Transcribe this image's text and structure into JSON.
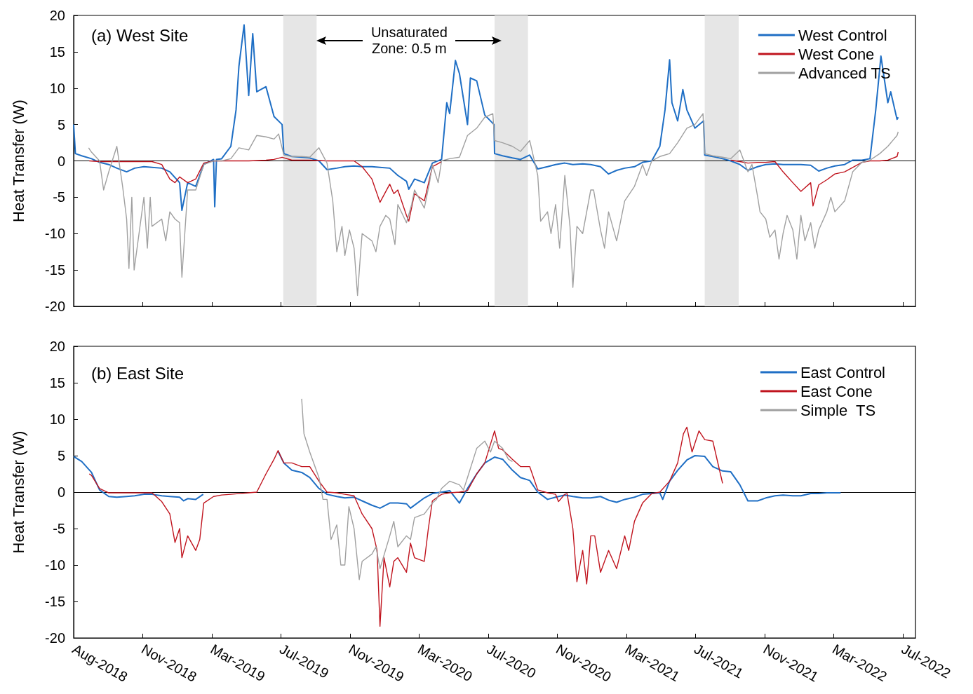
{
  "chart_data": [
    {
      "type": "line",
      "title": "(a) West Site",
      "ylabel": "Heat Transfer (W)",
      "annotations": [
        {
          "text": "Unsaturated Zone: 0.5 m",
          "x": "2019-09-27",
          "y": 16.5
        }
      ],
      "xlim": [
        "2018-08-01",
        "2022-08-02"
      ],
      "xticks": [
        {
          "value": "2018-08-01",
          "label": null
        },
        {
          "value": "2018-11-29",
          "label": null
        },
        {
          "value": "2019-03-29",
          "label": null
        },
        {
          "value": "2019-07-27",
          "label": null
        },
        {
          "value": "2019-11-24",
          "label": null
        },
        {
          "value": "2020-03-23",
          "label": null
        },
        {
          "value": "2020-07-21",
          "label": null
        },
        {
          "value": "2020-11-18",
          "label": null
        },
        {
          "value": "2021-03-18",
          "label": null
        },
        {
          "value": "2021-07-16",
          "label": null
        },
        {
          "value": "2021-11-13",
          "label": null
        },
        {
          "value": "2022-03-13",
          "label": null
        },
        {
          "value": "2022-07-11",
          "label": null
        }
      ],
      "ylim": [
        -20,
        20
      ],
      "yticks": [
        -20,
        -15,
        -10,
        -5,
        0,
        5,
        10,
        15,
        20
      ],
      "tick_labels": "y",
      "legend": "top right",
      "marker": "none",
      "ref_lines": [
        {
          "axis": "y",
          "value": 0,
          "color": "#000000"
        }
      ],
      "bands": [
        {
          "axis": "x",
          "from": "2019-07-31",
          "to": "2019-09-27",
          "color": "#e6e6e6"
        },
        {
          "axis": "x",
          "from": "2020-08-01",
          "to": "2020-09-28",
          "color": "#e6e6e6"
        },
        {
          "axis": "x",
          "from": "2021-08-01",
          "to": "2021-09-29",
          "color": "#e6e6e6"
        }
      ],
      "series": [
        {
          "name": "West Control",
          "color": "#1f6fc5",
          "x": [
            "2018-08-01",
            "2018-08-04",
            "2018-08-15",
            "2018-09-01",
            "2018-09-15",
            "2018-10-01",
            "2018-10-15",
            "2018-11-01",
            "2018-11-15",
            "2018-12-01",
            "2018-12-15",
            "2019-01-01",
            "2019-01-15",
            "2019-02-01",
            "2019-02-05",
            "2019-02-15",
            "2019-03-01",
            "2019-03-15",
            "2019-04-01",
            "2019-04-03",
            "2019-04-06",
            "2019-04-15",
            "2019-05-01",
            "2019-05-10",
            "2019-05-15",
            "2019-05-24",
            "2019-06-01",
            "2019-06-08",
            "2019-06-15",
            "2019-07-01",
            "2019-07-15",
            "2019-07-29",
            "2019-08-01",
            "2019-08-15",
            "2019-09-01",
            "2019-09-15",
            "2019-10-01",
            "2019-10-15",
            "2019-11-01",
            "2019-11-15",
            "2019-12-01",
            "2019-12-15",
            "2020-01-01",
            "2020-01-15",
            "2020-02-01",
            "2020-02-15",
            "2020-03-01",
            "2020-03-05",
            "2020-03-15",
            "2020-04-01",
            "2020-04-15",
            "2020-05-01",
            "2020-05-10",
            "2020-05-15",
            "2020-05-25",
            "2020-06-01",
            "2020-06-15",
            "2020-06-20",
            "2020-07-01",
            "2020-07-15",
            "2020-07-31",
            "2020-08-01",
            "2020-08-15",
            "2020-09-01",
            "2020-09-15",
            "2020-10-01",
            "2020-10-15",
            "2020-11-01",
            "2020-11-15",
            "2020-12-01",
            "2020-12-15",
            "2021-01-01",
            "2021-01-15",
            "2021-02-01",
            "2021-02-15",
            "2021-03-01",
            "2021-03-15",
            "2021-04-01",
            "2021-04-15",
            "2021-05-01",
            "2021-05-15",
            "2021-05-24",
            "2021-06-01",
            "2021-06-05",
            "2021-06-15",
            "2021-06-24",
            "2021-07-01",
            "2021-07-15",
            "2021-07-30",
            "2021-08-01",
            "2021-08-15",
            "2021-09-01",
            "2021-09-15",
            "2021-10-01",
            "2021-10-15",
            "2021-11-01",
            "2021-11-15",
            "2021-12-01",
            "2021-12-15",
            "2022-01-01",
            "2022-01-15",
            "2022-02-01",
            "2022-02-15",
            "2022-03-01",
            "2022-03-15",
            "2022-04-01",
            "2022-04-15",
            "2022-05-01",
            "2022-05-15",
            "2022-05-25",
            "2022-06-03",
            "2022-06-15",
            "2022-06-20",
            "2022-07-01",
            "2022-07-03"
          ],
          "values": [
            5.0,
            1.0,
            0.7,
            0.3,
            -0.2,
            -0.5,
            -1.0,
            -1.5,
            -1.0,
            -0.8,
            -0.9,
            -1.0,
            -1.5,
            -3.0,
            -6.8,
            -3.0,
            -3.5,
            -0.5,
            0.2,
            -6.3,
            0.2,
            0.3,
            2.0,
            7.0,
            13.0,
            18.7,
            9.0,
            17.5,
            9.5,
            10.2,
            6.1,
            5.0,
            1.0,
            0.6,
            0.5,
            0.4,
            0.0,
            -1.2,
            -1.0,
            -0.8,
            -0.7,
            -0.8,
            -0.8,
            -0.9,
            -1.0,
            -2.0,
            -2.8,
            -3.9,
            -2.5,
            -3.0,
            -0.3,
            0.2,
            8.0,
            6.5,
            13.8,
            12.0,
            5.0,
            11.4,
            11.0,
            6.3,
            5.0,
            1.0,
            0.7,
            0.4,
            0.2,
            0.8,
            -1.1,
            -0.8,
            -0.5,
            -0.3,
            -0.5,
            -0.4,
            -0.5,
            -0.8,
            -1.8,
            -1.3,
            -1.0,
            -0.8,
            -0.2,
            0.0,
            2.0,
            7.0,
            13.9,
            8.0,
            5.5,
            9.8,
            7.0,
            4.5,
            5.5,
            0.8,
            0.6,
            0.3,
            0.0,
            -0.5,
            -1.3,
            -0.8,
            -0.5,
            -0.4,
            -0.5,
            -0.5,
            -0.5,
            -0.6,
            -1.4,
            -1.0,
            -0.7,
            -0.5,
            0.1,
            0.1,
            0.3,
            7.0,
            14.4,
            8.0,
            9.5,
            5.7,
            6.0
          ]
        },
        {
          "name": "West Cone",
          "color": "#c0141e",
          "x": [
            "2018-08-28",
            "2018-09-15",
            "2018-10-15",
            "2018-11-15",
            "2018-12-15",
            "2019-01-01",
            "2019-01-15",
            "2019-01-24",
            "2019-02-01",
            "2019-02-15",
            "2019-03-01",
            "2019-03-15",
            "2019-04-01",
            "2019-05-01",
            "2019-06-01",
            "2019-07-01",
            "2019-07-15",
            "2019-07-29",
            "2019-08-15",
            "2019-09-15",
            "2019-10-15",
            "2019-11-15",
            "2019-12-01",
            "2019-12-15",
            "2020-01-01",
            "2020-01-15",
            "2020-02-01",
            "2020-02-08",
            "2020-02-15",
            "2020-03-01",
            "2020-03-05",
            "2020-03-15",
            "2020-04-01",
            "2020-04-15",
            "2020-05-01",
            "2021-01-01",
            "2021-09-15",
            "2021-10-01",
            "2021-10-15",
            "2021-11-01",
            "2021-11-15",
            "2021-12-01",
            "2021-12-15",
            "2022-01-01",
            "2022-01-15",
            "2022-02-01",
            "2022-02-05",
            "2022-02-15",
            "2022-03-01",
            "2022-03-15",
            "2022-04-01",
            "2022-04-15",
            "2022-05-01",
            "2022-05-15",
            "2022-06-01",
            "2022-06-15",
            "2022-07-01",
            "2022-07-03"
          ],
          "values": [
            0.0,
            -0.1,
            -0.1,
            -0.1,
            -0.1,
            -0.5,
            -2.5,
            -3.0,
            -2.2,
            -3.0,
            -2.5,
            -0.3,
            0.0,
            0.0,
            0.0,
            0.1,
            0.2,
            0.5,
            0.1,
            0.1,
            0.0,
            0.0,
            0.0,
            -0.8,
            -2.5,
            -5.7,
            -3.2,
            -4.5,
            -4.0,
            -7.5,
            -8.3,
            -4.5,
            -5.5,
            -0.8,
            -0.1,
            null,
            0.1,
            -0.1,
            -0.3,
            -0.2,
            -0.2,
            -0.1,
            -1.5,
            -3.0,
            -4.2,
            -3.0,
            -6.2,
            -3.3,
            -2.6,
            -1.8,
            -1.5,
            -0.9,
            -0.2,
            0.0,
            0.0,
            0.1,
            0.6,
            1.2
          ]
        },
        {
          "name": "Advanced TS",
          "color": "#a0a0a0",
          "x": [
            "2018-08-27",
            "2018-09-01",
            "2018-09-15",
            "2018-09-22",
            "2018-10-01",
            "2018-10-15",
            "2018-10-25",
            "2018-11-01",
            "2018-11-05",
            "2018-11-10",
            "2018-11-14",
            "2018-12-01",
            "2018-12-07",
            "2018-12-12",
            "2018-12-15",
            "2019-01-01",
            "2019-01-08",
            "2019-01-15",
            "2019-01-24",
            "2019-02-01",
            "2019-02-05",
            "2019-02-15",
            "2019-03-01",
            "2019-03-15",
            "2019-04-01",
            "2019-04-15",
            "2019-05-01",
            "2019-05-15",
            "2019-06-01",
            "2019-06-15",
            "2019-07-01",
            "2019-07-15",
            "2019-07-23",
            "2019-08-01",
            "2019-08-15",
            "2019-09-01",
            "2019-09-15",
            "2019-10-01",
            "2019-10-15",
            "2019-10-25",
            "2019-11-01",
            "2019-11-10",
            "2019-11-15",
            "2019-11-23",
            "2019-12-01",
            "2019-12-07",
            "2019-12-12",
            "2019-12-15",
            "2020-01-01",
            "2020-01-08",
            "2020-01-15",
            "2020-01-25",
            "2020-02-01",
            "2020-02-10",
            "2020-02-15",
            "2020-03-01",
            "2020-03-10",
            "2020-03-15",
            "2020-04-01",
            "2020-04-10",
            "2020-04-15",
            "2020-04-25",
            "2020-05-01",
            "2020-05-15",
            "2020-06-01",
            "2020-06-15",
            "2020-07-01",
            "2020-07-15",
            "2020-07-29",
            "2020-08-01",
            "2020-08-15",
            "2020-09-01",
            "2020-09-15",
            "2020-10-01",
            "2020-10-15",
            "2020-10-20",
            "2020-11-01",
            "2020-11-07",
            "2020-11-15",
            "2020-11-22",
            "2020-12-01",
            "2020-12-10",
            "2020-12-15",
            "2020-12-22",
            "2021-01-01",
            "2021-01-15",
            "2021-01-20",
            "2021-02-01",
            "2021-02-08",
            "2021-02-15",
            "2021-03-01",
            "2021-03-15",
            "2021-04-01",
            "2021-04-15",
            "2021-04-22",
            "2021-05-01",
            "2021-05-15",
            "2021-06-01",
            "2021-06-15",
            "2021-07-01",
            "2021-07-15",
            "2021-07-29",
            "2021-08-01",
            "2021-08-15",
            "2021-09-01",
            "2021-09-15",
            "2021-10-01",
            "2021-10-15",
            "2021-10-22",
            "2021-11-01",
            "2021-11-05",
            "2021-11-15",
            "2021-11-22",
            "2021-12-01",
            "2021-12-08",
            "2021-12-15",
            "2021-12-22",
            "2022-01-01",
            "2022-01-08",
            "2022-01-15",
            "2022-01-22",
            "2022-02-01",
            "2022-02-08",
            "2022-02-15",
            "2022-03-01",
            "2022-03-08",
            "2022-03-15",
            "2022-04-01",
            "2022-04-15",
            "2022-05-01",
            "2022-05-15",
            "2022-06-01",
            "2022-06-15",
            "2022-07-01",
            "2022-07-03"
          ],
          "values": [
            1.8,
            1.2,
            0.0,
            -4.0,
            -1.5,
            2.0,
            -3.5,
            -8.0,
            -14.8,
            -5.0,
            -15.0,
            -5.0,
            -12.0,
            -5.0,
            -9.0,
            -8.0,
            -11.0,
            -7.0,
            -8.0,
            -8.5,
            -16.0,
            -4.0,
            -4.0,
            -0.5,
            0.0,
            0.0,
            0.3,
            1.8,
            1.5,
            3.5,
            3.3,
            3.0,
            3.7,
            0.8,
            0.6,
            0.6,
            0.5,
            1.8,
            -0.3,
            -5.5,
            -12.5,
            -9.0,
            -13.0,
            -9.5,
            -12.0,
            -18.5,
            -13.0,
            -10.0,
            -11.0,
            -12.5,
            -9.0,
            -7.5,
            -8.0,
            -11.5,
            -6.0,
            -8.5,
            -6.0,
            -4.0,
            -6.5,
            -3.0,
            -0.5,
            -3.0,
            0.0,
            0.3,
            0.5,
            3.5,
            4.5,
            6.0,
            6.5,
            2.8,
            2.5,
            2.0,
            1.3,
            2.8,
            -2.0,
            -8.3,
            -7.0,
            -10.0,
            -6.0,
            -12.0,
            -2.0,
            -9.0,
            -17.4,
            -9.0,
            -10.0,
            -4.0,
            -4.0,
            -9.5,
            -12.0,
            -7.0,
            -11.0,
            -5.5,
            -3.5,
            -0.5,
            -2.0,
            0.0,
            0.6,
            1.0,
            2.5,
            4.5,
            5.0,
            6.5,
            1.0,
            0.7,
            0.5,
            0.3,
            1.5,
            -1.5,
            -0.5,
            -5.0,
            -7.0,
            -8.0,
            -10.5,
            -9.5,
            -13.5,
            -10.0,
            -7.5,
            -9.5,
            -13.5,
            -7.5,
            -11.0,
            -8.5,
            -12.0,
            -9.5,
            -7.0,
            -5.0,
            -7.0,
            -5.5,
            -1.5,
            -0.2,
            0.1,
            1.0,
            2.0,
            3.5,
            4.0
          ]
        }
      ]
    },
    {
      "type": "line",
      "title": "(b) East Site",
      "ylabel": "Heat Transfer (W)",
      "xlim": [
        "2018-08-01",
        "2022-08-02"
      ],
      "xticks": [
        {
          "value": "2018-08-01",
          "label": "Aug-2018"
        },
        {
          "value": "2018-11-29",
          "label": "Nov-2018"
        },
        {
          "value": "2019-03-29",
          "label": "Mar-2019"
        },
        {
          "value": "2019-07-27",
          "label": "Jul-2019"
        },
        {
          "value": "2019-11-24",
          "label": "Nov-2019"
        },
        {
          "value": "2020-03-23",
          "label": "Mar-2020"
        },
        {
          "value": "2020-07-21",
          "label": "Jul-2020"
        },
        {
          "value": "2020-11-18",
          "label": "Nov-2020"
        },
        {
          "value": "2021-03-18",
          "label": "Mar-2021"
        },
        {
          "value": "2021-07-16",
          "label": "Jul-2021"
        },
        {
          "value": "2021-11-13",
          "label": "Nov-2021"
        },
        {
          "value": "2022-03-13",
          "label": "Mar-2022"
        },
        {
          "value": "2022-07-11",
          "label": "Jul-2022"
        }
      ],
      "ylim": [
        -20,
        20
      ],
      "yticks": [
        -20,
        -15,
        -10,
        -5,
        0,
        5,
        10,
        15,
        20
      ],
      "legend": "top right",
      "marker": "none",
      "ref_lines": [
        {
          "axis": "y",
          "value": 0,
          "color": "#000000"
        }
      ],
      "series": [
        {
          "name": "East Control",
          "color": "#1f6fc5",
          "x": [
            "2018-08-01",
            "2018-08-15",
            "2018-09-01",
            "2018-09-15",
            "2018-10-01",
            "2018-10-15",
            "2018-11-01",
            "2018-11-15",
            "2018-12-01",
            "2018-12-15",
            "2019-01-01",
            "2019-01-15",
            "2019-02-01",
            "2019-02-08",
            "2019-02-15",
            "2019-03-01",
            "2019-03-14",
            "2019-05-01",
            "2019-07-22",
            "2019-08-01",
            "2019-08-15",
            "2019-09-01",
            "2019-09-15",
            "2019-10-01",
            "2019-10-15",
            "2019-11-01",
            "2019-11-15",
            "2019-12-01",
            "2019-12-15",
            "2020-01-01",
            "2020-01-15",
            "2020-02-01",
            "2020-02-15",
            "2020-03-01",
            "2020-03-08",
            "2020-04-01",
            "2020-04-15",
            "2020-05-01",
            "2020-05-15",
            "2020-06-01",
            "2020-06-15",
            "2020-07-01",
            "2020-07-15",
            "2020-08-01",
            "2020-08-15",
            "2020-09-01",
            "2020-09-15",
            "2020-10-01",
            "2020-10-15",
            "2020-11-01",
            "2020-11-15",
            "2020-12-01",
            "2020-12-15",
            "2021-01-01",
            "2021-01-15",
            "2021-02-01",
            "2021-02-15",
            "2021-03-01",
            "2021-03-15",
            "2021-04-01",
            "2021-04-15",
            "2021-05-01",
            "2021-05-15",
            "2021-05-20",
            "2021-06-01",
            "2021-06-15",
            "2021-07-01",
            "2021-07-15",
            "2021-08-01",
            "2021-08-15",
            "2021-09-01",
            "2021-09-15",
            "2021-10-01",
            "2021-10-15",
            "2021-11-01",
            "2021-11-15",
            "2021-12-01",
            "2021-12-15",
            "2022-01-01",
            "2022-01-15",
            "2022-02-01",
            "2022-02-15",
            "2022-03-01",
            "2022-03-15",
            "2022-03-25"
          ],
          "values": [
            4.9,
            4.2,
            2.7,
            0.3,
            -0.6,
            -0.7,
            -0.6,
            -0.5,
            -0.3,
            -0.3,
            -0.5,
            -0.6,
            -0.7,
            -1.2,
            -0.9,
            -1.0,
            -0.3,
            null,
            5.6,
            4.0,
            3.0,
            2.7,
            2.0,
            0.5,
            -0.3,
            -0.6,
            -0.8,
            -0.7,
            -1.2,
            -1.8,
            -2.2,
            -1.5,
            -1.5,
            -1.6,
            -2.2,
            -0.8,
            -0.2,
            0.0,
            0.2,
            -1.5,
            0.5,
            2.5,
            4.0,
            4.8,
            4.5,
            3.0,
            2.0,
            1.6,
            0.0,
            -1.0,
            -0.7,
            -0.4,
            -0.6,
            -0.8,
            -0.8,
            -0.6,
            -1.1,
            -1.4,
            -1.0,
            -0.7,
            -0.3,
            -0.2,
            -0.1,
            -1.0,
            1.5,
            3.0,
            4.4,
            5.0,
            4.9,
            3.5,
            2.9,
            2.8,
            1.0,
            -1.2,
            -1.2,
            -0.8,
            -0.5,
            -0.4,
            -0.5,
            -0.5,
            -0.2,
            -0.2,
            -0.1,
            -0.1,
            -0.1
          ]
        },
        {
          "name": "East Cone",
          "color": "#c0141e",
          "x": [
            "2018-08-28",
            "2018-09-01",
            "2018-09-15",
            "2018-10-01",
            "2018-11-01",
            "2018-12-01",
            "2018-12-15",
            "2019-01-01",
            "2019-01-15",
            "2019-01-24",
            "2019-02-01",
            "2019-02-05",
            "2019-02-15",
            "2019-03-01",
            "2019-03-08",
            "2019-03-15",
            "2019-04-01",
            "2019-04-15",
            "2019-05-01",
            "2019-05-15",
            "2019-06-01",
            "2019-06-15",
            "2019-07-01",
            "2019-07-15",
            "2019-07-22",
            "2019-08-01",
            "2019-08-15",
            "2019-09-01",
            "2019-09-15",
            "2019-10-01",
            "2019-10-15",
            "2019-11-01",
            "2019-11-15",
            "2019-12-01",
            "2019-12-15",
            "2020-01-01",
            "2020-01-10",
            "2020-01-15",
            "2020-01-22",
            "2020-02-01",
            "2020-02-08",
            "2020-02-15",
            "2020-03-01",
            "2020-03-08",
            "2020-03-15",
            "2020-04-01",
            "2020-04-08",
            "2020-04-15",
            "2020-05-01",
            "2020-05-15",
            "2020-06-01",
            "2020-06-15",
            "2020-07-01",
            "2020-07-15",
            "2020-08-01",
            "2020-08-08",
            "2020-08-15",
            "2020-09-01",
            "2020-09-15",
            "2020-10-01",
            "2020-10-15",
            "2020-11-01",
            "2020-11-15",
            "2020-11-20",
            "2020-12-01",
            "2020-12-05",
            "2020-12-15",
            "2020-12-22",
            "2021-01-01",
            "2021-01-08",
            "2021-01-15",
            "2021-01-22",
            "2021-02-01",
            "2021-02-15",
            "2021-03-01",
            "2021-03-15",
            "2021-03-22",
            "2021-04-01",
            "2021-04-15",
            "2021-05-01",
            "2021-05-15",
            "2021-06-01",
            "2021-06-15",
            "2021-06-25",
            "2021-07-01",
            "2021-07-10",
            "2021-07-22",
            "2021-08-01",
            "2021-08-15",
            "2021-09-01"
          ],
          "values": [
            2.5,
            2.3,
            0.5,
            -0.1,
            -0.1,
            -0.1,
            -0.1,
            -1.3,
            -3.0,
            -6.9,
            -5.0,
            -9.0,
            -6.0,
            -8.0,
            -6.5,
            -1.5,
            -0.6,
            -0.4,
            -0.3,
            -0.2,
            -0.1,
            0.0,
            2.5,
            4.5,
            5.7,
            4.0,
            4.0,
            3.5,
            3.5,
            1.5,
            0.0,
            -0.1,
            -0.3,
            -0.5,
            -3.0,
            -5.0,
            -8.0,
            -18.4,
            -9.0,
            -13.0,
            -9.5,
            -9.0,
            -11.0,
            -7.0,
            -9.0,
            -9.5,
            -5.0,
            -1.2,
            -0.3,
            -0.1,
            0.0,
            0.2,
            2.5,
            4.0,
            8.4,
            6.0,
            5.8,
            4.5,
            3.5,
            3.5,
            0.3,
            -0.1,
            -0.3,
            -1.3,
            -0.3,
            -0.2,
            -5.0,
            -12.3,
            -8.0,
            -12.6,
            -6.0,
            -6.0,
            -11.0,
            -8.0,
            -10.5,
            -6.0,
            -8.0,
            -4.0,
            -1.5,
            -0.2,
            0.0,
            1.5,
            4.0,
            8.0,
            8.9,
            5.5,
            8.4,
            7.2,
            7.0,
            1.2
          ]
        },
        {
          "name": "Simple  TS",
          "color": "#a0a0a0",
          "x": [
            "2019-09-01",
            "2019-09-05",
            "2019-09-15",
            "2019-10-01",
            "2019-10-08",
            "2019-10-15",
            "2019-10-22",
            "2019-11-01",
            "2019-11-08",
            "2019-11-15",
            "2019-11-22",
            "2019-12-01",
            "2019-12-10",
            "2019-12-15",
            "2020-01-01",
            "2020-01-08",
            "2020-01-15",
            "2020-02-01",
            "2020-02-08",
            "2020-02-15",
            "2020-03-01",
            "2020-03-08",
            "2020-03-15",
            "2020-04-01",
            "2020-04-15",
            "2020-04-22",
            "2020-05-01",
            "2020-05-15",
            "2020-06-01",
            "2020-06-08",
            "2020-06-15",
            "2020-07-01",
            "2020-07-15",
            "2020-07-25",
            "2020-08-01",
            "2020-08-15",
            "2020-08-25",
            "2020-09-01"
          ],
          "values": [
            12.8,
            8.0,
            5.5,
            2.0,
            -1.0,
            -1.0,
            -6.5,
            -4.5,
            -10.0,
            -10.0,
            -2.0,
            -5.0,
            -12.0,
            -9.5,
            -8.5,
            -7.5,
            -10.5,
            -6.0,
            -4.0,
            -7.5,
            -6.0,
            -6.5,
            -3.5,
            -3.0,
            -1.5,
            -1.0,
            0.5,
            1.5,
            1.0,
            0.3,
            2.0,
            6.0,
            7.0,
            5.5,
            7.0,
            6.0,
            4.5,
            4.2
          ]
        }
      ]
    }
  ]
}
